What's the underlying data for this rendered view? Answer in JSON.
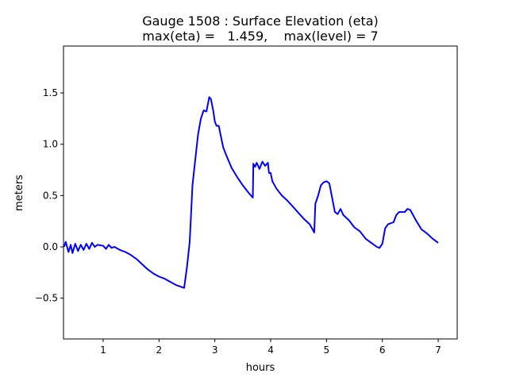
{
  "chart_data": {
    "type": "line",
    "title": "Gauge 1508 : Surface Elevation (eta)",
    "subtitle": "max(eta) =   1.459,    max(level) = 7",
    "xlabel": "hours",
    "ylabel": "meters",
    "xlim": [
      0.29,
      7.34
    ],
    "ylim": [
      -0.897,
      1.957
    ],
    "xticks": [
      1,
      2,
      3,
      4,
      5,
      6,
      7
    ],
    "xtick_labels": [
      "1",
      "2",
      "3",
      "4",
      "5",
      "6",
      "7"
    ],
    "yticks": [
      -0.5,
      0.0,
      0.5,
      1.0,
      1.5
    ],
    "ytick_labels": [
      "−0.5",
      "0.0",
      "0.5",
      "1.0",
      "1.5"
    ],
    "grid": false,
    "series": [
      {
        "name": "eta",
        "color": "#0000ff",
        "x": [
          0.3,
          0.33,
          0.38,
          0.42,
          0.45,
          0.5,
          0.55,
          0.6,
          0.65,
          0.7,
          0.75,
          0.8,
          0.85,
          0.9,
          1.0,
          1.05,
          1.1,
          1.15,
          1.2,
          1.3,
          1.4,
          1.5,
          1.6,
          1.7,
          1.8,
          1.9,
          2.0,
          2.1,
          2.2,
          2.3,
          2.4,
          2.45,
          2.5,
          2.55,
          2.6,
          2.65,
          2.7,
          2.75,
          2.8,
          2.85,
          2.9,
          2.93,
          2.97,
          3.0,
          3.03,
          3.07,
          3.1,
          3.15,
          3.2,
          3.3,
          3.4,
          3.5,
          3.6,
          3.68,
          3.69,
          3.72,
          3.75,
          3.8,
          3.85,
          3.9,
          3.95,
          3.97,
          4.0,
          4.03,
          4.1,
          4.2,
          4.3,
          4.4,
          4.5,
          4.6,
          4.7,
          4.78,
          4.8,
          4.85,
          4.9,
          4.95,
          5.0,
          5.05,
          5.1,
          5.15,
          5.2,
          5.25,
          5.3,
          5.4,
          5.5,
          5.6,
          5.7,
          5.8,
          5.9,
          5.95,
          6.0,
          6.05,
          6.1,
          6.2,
          6.25,
          6.3,
          6.4,
          6.45,
          6.5,
          6.6,
          6.7,
          6.8,
          6.9,
          7.0
        ],
        "y": [
          0.0,
          0.05,
          -0.05,
          0.02,
          -0.06,
          0.03,
          -0.04,
          0.02,
          -0.03,
          0.03,
          -0.02,
          0.04,
          0.0,
          0.02,
          0.01,
          -0.02,
          0.02,
          -0.01,
          0.0,
          -0.03,
          -0.05,
          -0.08,
          -0.12,
          -0.17,
          -0.22,
          -0.26,
          -0.29,
          -0.31,
          -0.34,
          -0.37,
          -0.39,
          -0.4,
          -0.2,
          0.05,
          0.6,
          0.85,
          1.1,
          1.25,
          1.33,
          1.32,
          1.459,
          1.44,
          1.33,
          1.22,
          1.18,
          1.18,
          1.1,
          0.97,
          0.9,
          0.77,
          0.68,
          0.6,
          0.53,
          0.48,
          0.81,
          0.78,
          0.82,
          0.76,
          0.83,
          0.79,
          0.82,
          0.72,
          0.72,
          0.64,
          0.57,
          0.5,
          0.45,
          0.39,
          0.33,
          0.27,
          0.22,
          0.14,
          0.42,
          0.5,
          0.6,
          0.63,
          0.64,
          0.62,
          0.48,
          0.34,
          0.32,
          0.37,
          0.31,
          0.26,
          0.19,
          0.15,
          0.08,
          0.04,
          0.0,
          -0.01,
          0.03,
          0.18,
          0.22,
          0.24,
          0.31,
          0.34,
          0.34,
          0.37,
          0.36,
          0.26,
          0.17,
          0.13,
          0.08,
          0.04
        ]
      }
    ]
  }
}
